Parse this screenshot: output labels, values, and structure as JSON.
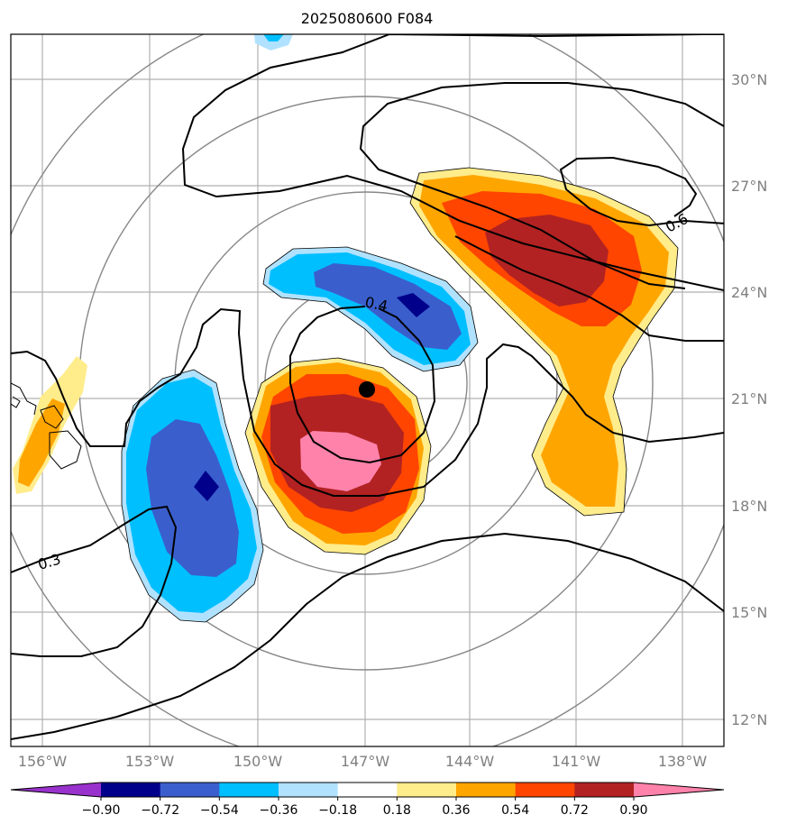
{
  "title": "2025080600 F084",
  "map": {
    "lat_labels": [
      "30°N",
      "27°N",
      "24°N",
      "21°N",
      "18°N",
      "15°N",
      "12°N"
    ],
    "lon_labels": [
      "156°W",
      "153°W",
      "150°W",
      "147°W",
      "144°W",
      "141°W",
      "138°W"
    ],
    "contour_labels": [
      "0.6",
      "0.4",
      "0.3"
    ],
    "storm_center_marker": "filled-circle"
  },
  "colorbar": {
    "tick_labels": [
      "−0.90",
      "−0.72",
      "−0.54",
      "−0.36",
      "−0.18",
      "0.18",
      "0.36",
      "0.54",
      "0.72",
      "0.90"
    ],
    "colors": [
      "#9932cc",
      "#00008b",
      "#3a5fcd",
      "#00bfff",
      "#b0e2ff",
      "#ffffff",
      "#ffec8b",
      "#ffa500",
      "#ff4500",
      "#b22222",
      "#ff82ab"
    ]
  }
}
